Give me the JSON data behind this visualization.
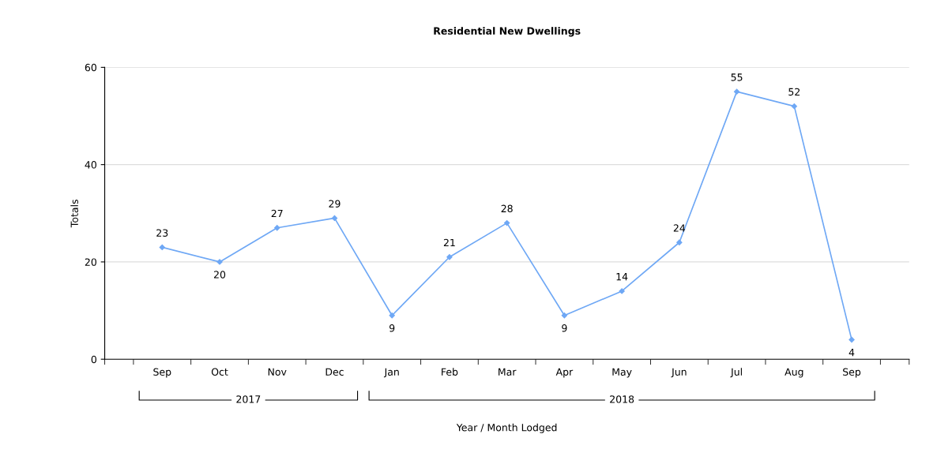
{
  "chart_data": {
    "type": "line",
    "title": "Residential New Dwellings",
    "xlabel": "Year / Month Lodged",
    "ylabel": "Totals",
    "categories": [
      "Sep",
      "Oct",
      "Nov",
      "Dec",
      "Jan",
      "Feb",
      "Mar",
      "Apr",
      "May",
      "Jun",
      "Jul",
      "Aug",
      "Sep"
    ],
    "series": [
      {
        "color": "#6fa8f5",
        "values": [
          23,
          20,
          27,
          29,
          9,
          21,
          28,
          9,
          14,
          24,
          55,
          52,
          4
        ]
      }
    ],
    "ylim": [
      0,
      60
    ],
    "yticks": [
      0,
      20,
      40,
      60
    ],
    "grid": "y",
    "marker": "diamond",
    "data_labels": true,
    "annotations": [
      "2017",
      "2018"
    ]
  }
}
